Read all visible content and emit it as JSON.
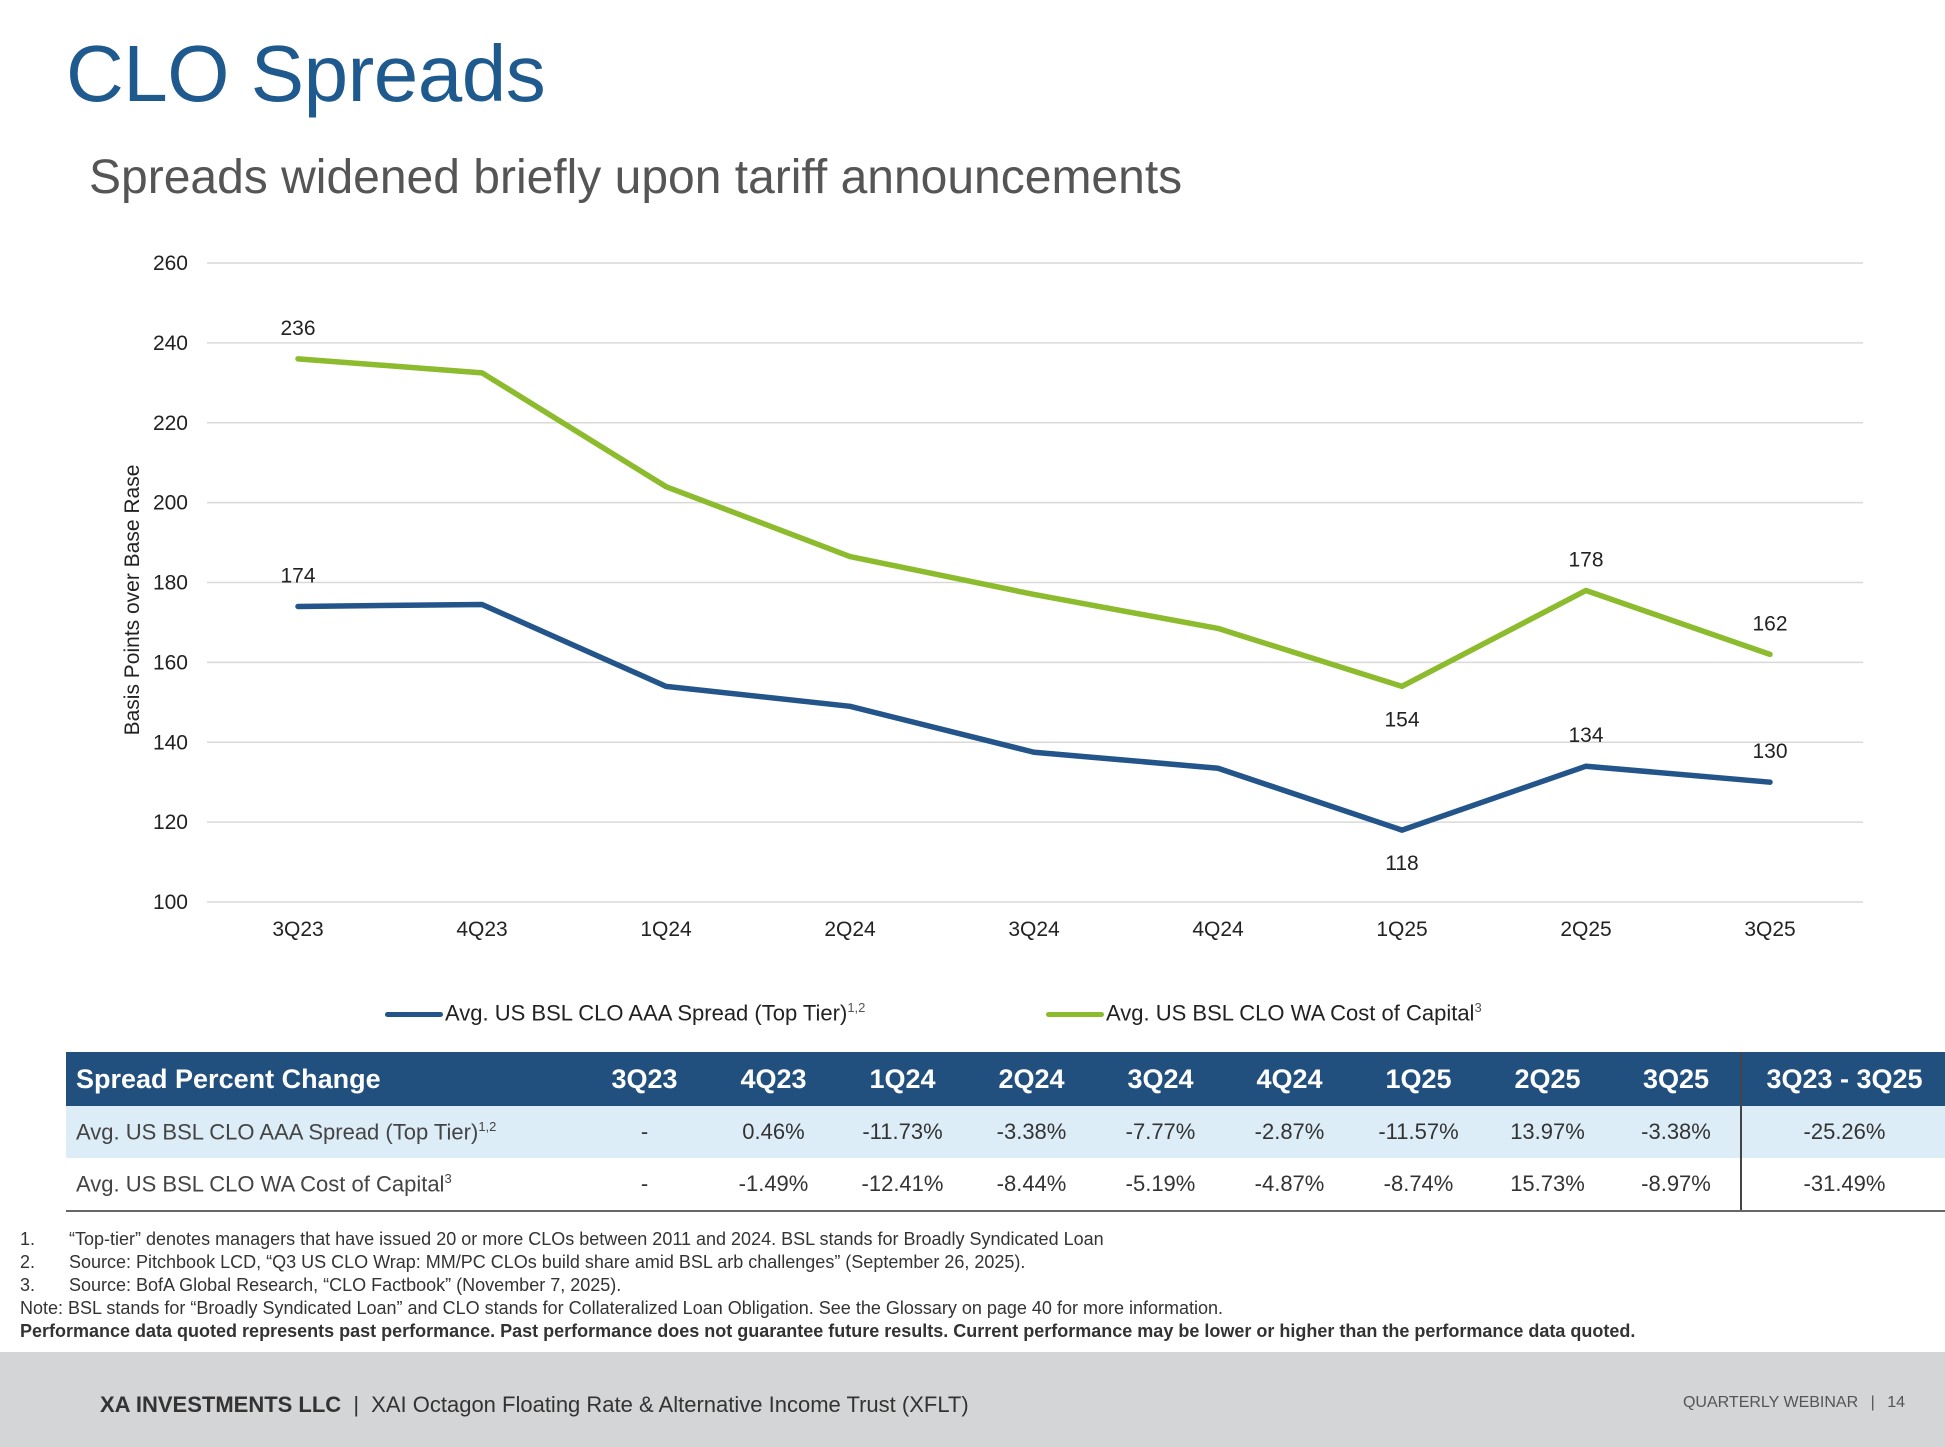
{
  "title": "CLO Spreads",
  "subtitle": "Spreads widened briefly upon tariff announcements",
  "chart_data": {
    "type": "line",
    "categories": [
      "3Q23",
      "4Q23",
      "1Q24",
      "2Q24",
      "3Q24",
      "4Q24",
      "1Q25",
      "2Q25",
      "3Q25"
    ],
    "ylabel": "Basis Points over Base Rase",
    "ylim": [
      100,
      260
    ],
    "yticks": [
      100,
      120,
      140,
      160,
      180,
      200,
      220,
      240,
      260
    ],
    "grid": true,
    "legend_position": "bottom",
    "series": [
      {
        "name": "Avg. US BSL CLO AAA Spread (Top Tier)",
        "name_sup": "1,2",
        "color": "#23558a",
        "values": [
          174,
          174.5,
          154,
          149,
          137.5,
          133.5,
          118,
          134,
          130
        ],
        "data_labels": [
          {
            "index": 0,
            "text": "174"
          },
          {
            "index": 6,
            "text": "118"
          },
          {
            "index": 7,
            "text": "134"
          },
          {
            "index": 8,
            "text": "130"
          }
        ]
      },
      {
        "name": "Avg. US BSL CLO WA Cost of Capital",
        "name_sup": "3",
        "color": "#8cbb2e",
        "values": [
          236,
          232.5,
          204,
          186.5,
          177,
          168.5,
          154,
          178,
          162
        ],
        "data_labels": [
          {
            "index": 0,
            "text": "236"
          },
          {
            "index": 6,
            "text": "154"
          },
          {
            "index": 7,
            "text": "178"
          },
          {
            "index": 8,
            "text": "162"
          }
        ]
      }
    ]
  },
  "table": {
    "header": [
      "Spread Percent Change",
      "3Q23",
      "4Q23",
      "1Q24",
      "2Q24",
      "3Q24",
      "4Q24",
      "1Q25",
      "2Q25",
      "3Q25",
      "3Q23 - 3Q25"
    ],
    "rows": [
      {
        "label": "Avg. US BSL CLO AAA Spread (Top Tier)",
        "sup": "1,2",
        "cells": [
          "-",
          "0.46%",
          "-11.73%",
          "-3.38%",
          "-7.77%",
          "-2.87%",
          "-11.57%",
          "13.97%",
          "-3.38%",
          "-25.26%"
        ]
      },
      {
        "label": "Avg. US BSL CLO WA Cost of Capital",
        "sup": "3",
        "cells": [
          "-",
          "-1.49%",
          "-12.41%",
          "-8.44%",
          "-5.19%",
          "-4.87%",
          "-8.74%",
          "15.73%",
          "-8.97%",
          "-31.49%"
        ]
      }
    ]
  },
  "footnotes": {
    "items": [
      {
        "num": "1.",
        "text": "“Top-tier” denotes managers that have issued 20 or more CLOs between 2011 and 2024. BSL stands for Broadly Syndicated Loan"
      },
      {
        "num": "2.",
        "text": "Source: Pitchbook LCD, “Q3 US CLO Wrap: MM/PC CLOs build share amid BSL arb challenges” (September 26, 2025)."
      },
      {
        "num": "3.",
        "text": "Source: BofA Global Research, “CLO Factbook” (November 7, 2025)."
      }
    ],
    "note": "Note: BSL stands for “Broadly Syndicated Loan” and CLO stands for Collateralized Loan Obligation. See the Glossary on page 40 for more information.",
    "disclaimer": "Performance data quoted represents past performance. Past performance does not guarantee future results. Current performance may be lower or higher than the performance data quoted."
  },
  "footer": {
    "company": "XA INVESTMENTS LLC",
    "separator": "|",
    "fund": "XAI Octagon Floating Rate & Alternative Income Trust (XFLT)",
    "right_label": "QUARTERLY WEBINAR",
    "page_sep": "|",
    "page": "14"
  }
}
